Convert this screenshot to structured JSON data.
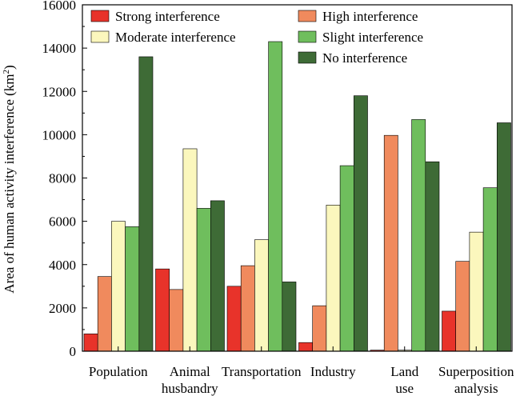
{
  "chart_data": {
    "type": "bar",
    "ylabel": "Area of human activity interference (km²)",
    "ylabel_main": "Area of human activity interference (km",
    "ylabel_sup": "2",
    "ylabel_tail": ")",
    "xlabel": "",
    "ylim": [
      0,
      16000
    ],
    "yticks": [
      0,
      2000,
      4000,
      6000,
      8000,
      10000,
      12000,
      14000,
      16000
    ],
    "grid": false,
    "legend_position": "top",
    "categories": [
      [
        "Population"
      ],
      [
        "Animal",
        "husbandry"
      ],
      [
        "Transportation"
      ],
      [
        "Industry"
      ],
      [
        "Land",
        "use"
      ],
      [
        "Superposition",
        "analysis"
      ]
    ],
    "series": [
      {
        "name": "Strong interference",
        "color": "#e8332a",
        "values": [
          800,
          3800,
          3000,
          400,
          50,
          1850
        ]
      },
      {
        "name": "High interference",
        "color": "#f08a5d",
        "values": [
          3450,
          2850,
          3950,
          2100,
          9970,
          4150
        ]
      },
      {
        "name": "Moderate interference",
        "color": "#fbf7bd",
        "values": [
          6000,
          9350,
          5150,
          6750,
          50,
          5500
        ]
      },
      {
        "name": "Slight interference",
        "color": "#6fbe5d",
        "values": [
          5750,
          6600,
          14300,
          8570,
          10700,
          7550
        ]
      },
      {
        "name": "No interference",
        "color": "#3e6b36",
        "values": [
          13600,
          6950,
          3200,
          11800,
          8750,
          10550
        ]
      }
    ]
  }
}
